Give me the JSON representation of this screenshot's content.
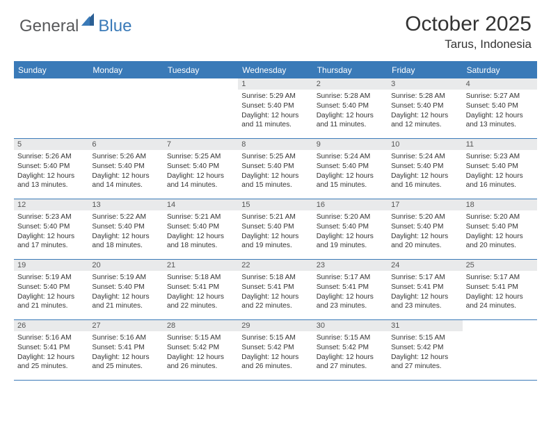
{
  "logo": {
    "general": "General",
    "blue": "Blue"
  },
  "title": "October 2025",
  "location": "Tarus, Indonesia",
  "colors": {
    "brand": "#3a7ab8",
    "headerBg": "#3a7ab8",
    "dayBar": "#e9eaeb",
    "text": "#333",
    "logoGray": "#58595b"
  },
  "dayNames": [
    "Sunday",
    "Monday",
    "Tuesday",
    "Wednesday",
    "Thursday",
    "Friday",
    "Saturday"
  ],
  "weeks": [
    [
      null,
      null,
      null,
      {
        "d": "1",
        "sr": "5:29 AM",
        "ss": "5:40 PM",
        "dh": "12",
        "dm": "11"
      },
      {
        "d": "2",
        "sr": "5:28 AM",
        "ss": "5:40 PM",
        "dh": "12",
        "dm": "11"
      },
      {
        "d": "3",
        "sr": "5:28 AM",
        "ss": "5:40 PM",
        "dh": "12",
        "dm": "12"
      },
      {
        "d": "4",
        "sr": "5:27 AM",
        "ss": "5:40 PM",
        "dh": "12",
        "dm": "13"
      }
    ],
    [
      {
        "d": "5",
        "sr": "5:26 AM",
        "ss": "5:40 PM",
        "dh": "12",
        "dm": "13"
      },
      {
        "d": "6",
        "sr": "5:26 AM",
        "ss": "5:40 PM",
        "dh": "12",
        "dm": "14"
      },
      {
        "d": "7",
        "sr": "5:25 AM",
        "ss": "5:40 PM",
        "dh": "12",
        "dm": "14"
      },
      {
        "d": "8",
        "sr": "5:25 AM",
        "ss": "5:40 PM",
        "dh": "12",
        "dm": "15"
      },
      {
        "d": "9",
        "sr": "5:24 AM",
        "ss": "5:40 PM",
        "dh": "12",
        "dm": "15"
      },
      {
        "d": "10",
        "sr": "5:24 AM",
        "ss": "5:40 PM",
        "dh": "12",
        "dm": "16"
      },
      {
        "d": "11",
        "sr": "5:23 AM",
        "ss": "5:40 PM",
        "dh": "12",
        "dm": "16"
      }
    ],
    [
      {
        "d": "12",
        "sr": "5:23 AM",
        "ss": "5:40 PM",
        "dh": "12",
        "dm": "17"
      },
      {
        "d": "13",
        "sr": "5:22 AM",
        "ss": "5:40 PM",
        "dh": "12",
        "dm": "18"
      },
      {
        "d": "14",
        "sr": "5:21 AM",
        "ss": "5:40 PM",
        "dh": "12",
        "dm": "18"
      },
      {
        "d": "15",
        "sr": "5:21 AM",
        "ss": "5:40 PM",
        "dh": "12",
        "dm": "19"
      },
      {
        "d": "16",
        "sr": "5:20 AM",
        "ss": "5:40 PM",
        "dh": "12",
        "dm": "19"
      },
      {
        "d": "17",
        "sr": "5:20 AM",
        "ss": "5:40 PM",
        "dh": "12",
        "dm": "20"
      },
      {
        "d": "18",
        "sr": "5:20 AM",
        "ss": "5:40 PM",
        "dh": "12",
        "dm": "20"
      }
    ],
    [
      {
        "d": "19",
        "sr": "5:19 AM",
        "ss": "5:40 PM",
        "dh": "12",
        "dm": "21"
      },
      {
        "d": "20",
        "sr": "5:19 AM",
        "ss": "5:40 PM",
        "dh": "12",
        "dm": "21"
      },
      {
        "d": "21",
        "sr": "5:18 AM",
        "ss": "5:41 PM",
        "dh": "12",
        "dm": "22"
      },
      {
        "d": "22",
        "sr": "5:18 AM",
        "ss": "5:41 PM",
        "dh": "12",
        "dm": "22"
      },
      {
        "d": "23",
        "sr": "5:17 AM",
        "ss": "5:41 PM",
        "dh": "12",
        "dm": "23"
      },
      {
        "d": "24",
        "sr": "5:17 AM",
        "ss": "5:41 PM",
        "dh": "12",
        "dm": "23"
      },
      {
        "d": "25",
        "sr": "5:17 AM",
        "ss": "5:41 PM",
        "dh": "12",
        "dm": "24"
      }
    ],
    [
      {
        "d": "26",
        "sr": "5:16 AM",
        "ss": "5:41 PM",
        "dh": "12",
        "dm": "25"
      },
      {
        "d": "27",
        "sr": "5:16 AM",
        "ss": "5:41 PM",
        "dh": "12",
        "dm": "25"
      },
      {
        "d": "28",
        "sr": "5:15 AM",
        "ss": "5:42 PM",
        "dh": "12",
        "dm": "26"
      },
      {
        "d": "29",
        "sr": "5:15 AM",
        "ss": "5:42 PM",
        "dh": "12",
        "dm": "26"
      },
      {
        "d": "30",
        "sr": "5:15 AM",
        "ss": "5:42 PM",
        "dh": "12",
        "dm": "27"
      },
      {
        "d": "31",
        "sr": "5:15 AM",
        "ss": "5:42 PM",
        "dh": "12",
        "dm": "27"
      },
      null
    ]
  ],
  "labels": {
    "sunrise": "Sunrise: ",
    "sunset": "Sunset: ",
    "daylight_prefix": "Daylight: ",
    "hours_word": " hours",
    "and_word": "and ",
    "minutes_word": " minutes."
  }
}
